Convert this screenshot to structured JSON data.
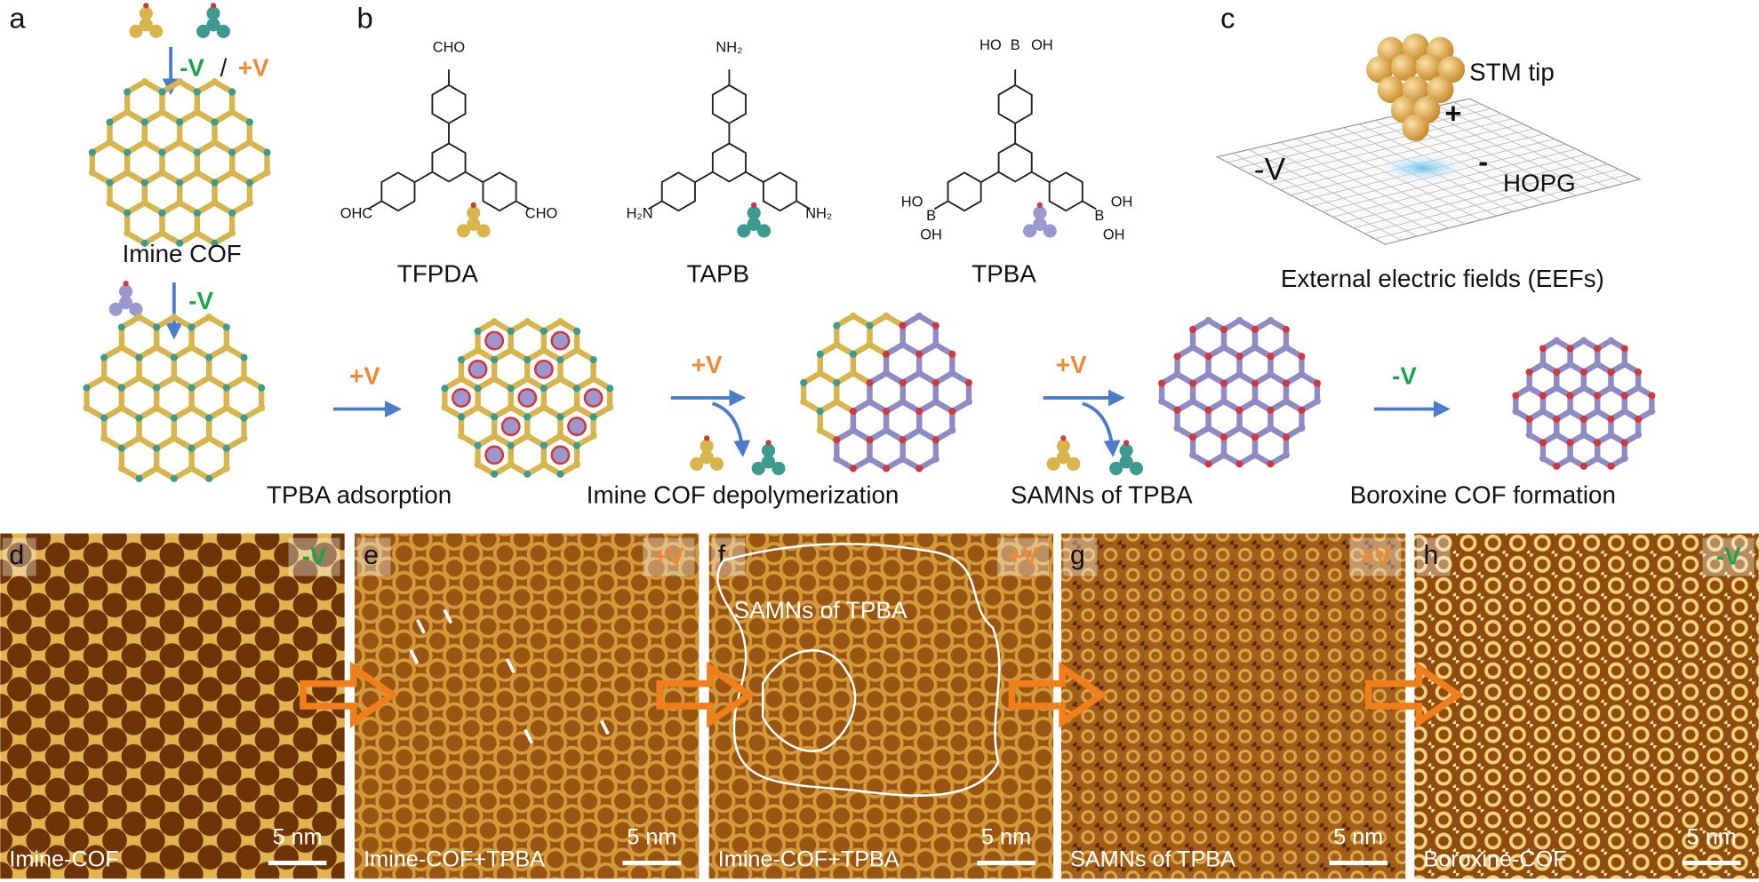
{
  "panel_a": {
    "label": "a",
    "bias_neg": "-V",
    "separator": "/",
    "bias_pos": "+V",
    "product": "Imine COF",
    "step_bias": "-V"
  },
  "panel_b": {
    "label": "b",
    "molecules": [
      {
        "name": "TFPDA",
        "groups": [
          "CHO",
          "OHC",
          "CHO"
        ]
      },
      {
        "name": "TAPB",
        "groups": [
          "NH₂",
          "H₂N",
          "NH₂"
        ]
      },
      {
        "name": "TPBA",
        "groups": [
          "HO",
          "B",
          "OH",
          "HO",
          "B",
          "OH",
          "B",
          "OH",
          "OH"
        ]
      }
    ]
  },
  "panel_c": {
    "label": "c",
    "tip": "STM tip",
    "tip_sign": "+",
    "bias": "-V",
    "surface_sign": "-",
    "surface": "HOPG",
    "caption": "External electric fields (EEFs)"
  },
  "process": {
    "arrows": [
      "+V",
      "+V",
      "+V",
      "-V"
    ],
    "captions": [
      "TPBA adsorption",
      "Imine COF depolymerization",
      "SAMNs of TPBA",
      "Boroxine COF formation"
    ]
  },
  "stm_images": [
    {
      "label": "d",
      "bias": "-V",
      "caption": "Imine-COF",
      "scale": "5 nm"
    },
    {
      "label": "e",
      "bias": "+V",
      "caption": "Imine-COF+TPBA",
      "scale": "5 nm"
    },
    {
      "label": "f",
      "bias": "+V",
      "caption": "Imine-COF+TPBA",
      "scale": "5 nm",
      "region": "SAMNs of TPBA"
    },
    {
      "label": "g",
      "bias": "+V",
      "caption": "SAMNs of TPBA",
      "scale": "5 nm"
    },
    {
      "label": "h",
      "bias": "-V",
      "caption": "Boroxine-COF",
      "scale": "5 nm"
    }
  ]
}
